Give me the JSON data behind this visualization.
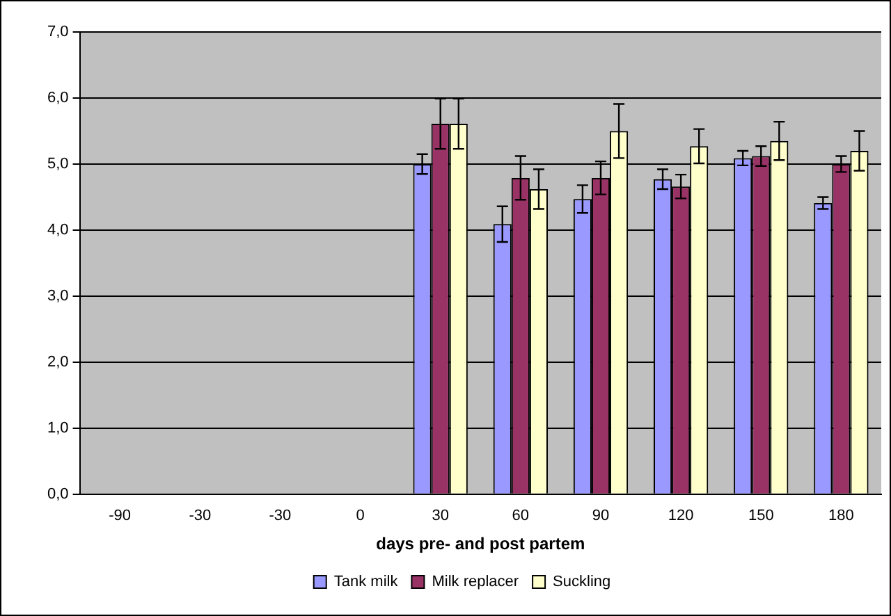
{
  "chart_data": {
    "type": "bar",
    "xlabel": "days pre- and post partem",
    "categories": [
      "-90",
      "-30",
      "-30",
      "0",
      "30",
      "60",
      "90",
      "120",
      "150",
      "180"
    ],
    "series": [
      {
        "name": "Tank milk",
        "color": "#9999ff",
        "values": [
          null,
          null,
          null,
          null,
          5.0,
          4.09,
          4.47,
          4.77,
          5.09,
          4.41
        ],
        "errors": [
          null,
          null,
          null,
          null,
          0.15,
          0.27,
          0.21,
          0.15,
          0.11,
          0.09
        ]
      },
      {
        "name": "Milk replacer",
        "color": "#993366",
        "values": [
          null,
          null,
          null,
          null,
          5.61,
          4.79,
          4.79,
          4.66,
          5.12,
          5.0
        ],
        "errors": [
          null,
          null,
          null,
          null,
          0.38,
          0.33,
          0.25,
          0.18,
          0.15,
          0.12
        ]
      },
      {
        "name": "Suckling",
        "color": "#ffffcc",
        "values": [
          null,
          null,
          null,
          null,
          5.61,
          4.62,
          5.5,
          5.27,
          5.35,
          5.2
        ],
        "errors": [
          null,
          null,
          null,
          null,
          0.38,
          0.3,
          0.41,
          0.26,
          0.29,
          0.3
        ]
      }
    ],
    "ylim": [
      0,
      7
    ],
    "yticks": [
      {
        "value": 0,
        "label": "0,0"
      },
      {
        "value": 1,
        "label": "1,0"
      },
      {
        "value": 2,
        "label": "2,0"
      },
      {
        "value": 3,
        "label": "3,0"
      },
      {
        "value": 4,
        "label": "4,0"
      },
      {
        "value": 5,
        "label": "5,0"
      },
      {
        "value": 6,
        "label": "6,0"
      },
      {
        "value": 7,
        "label": "7,0"
      }
    ],
    "grid": "y",
    "legend": "bottom"
  }
}
